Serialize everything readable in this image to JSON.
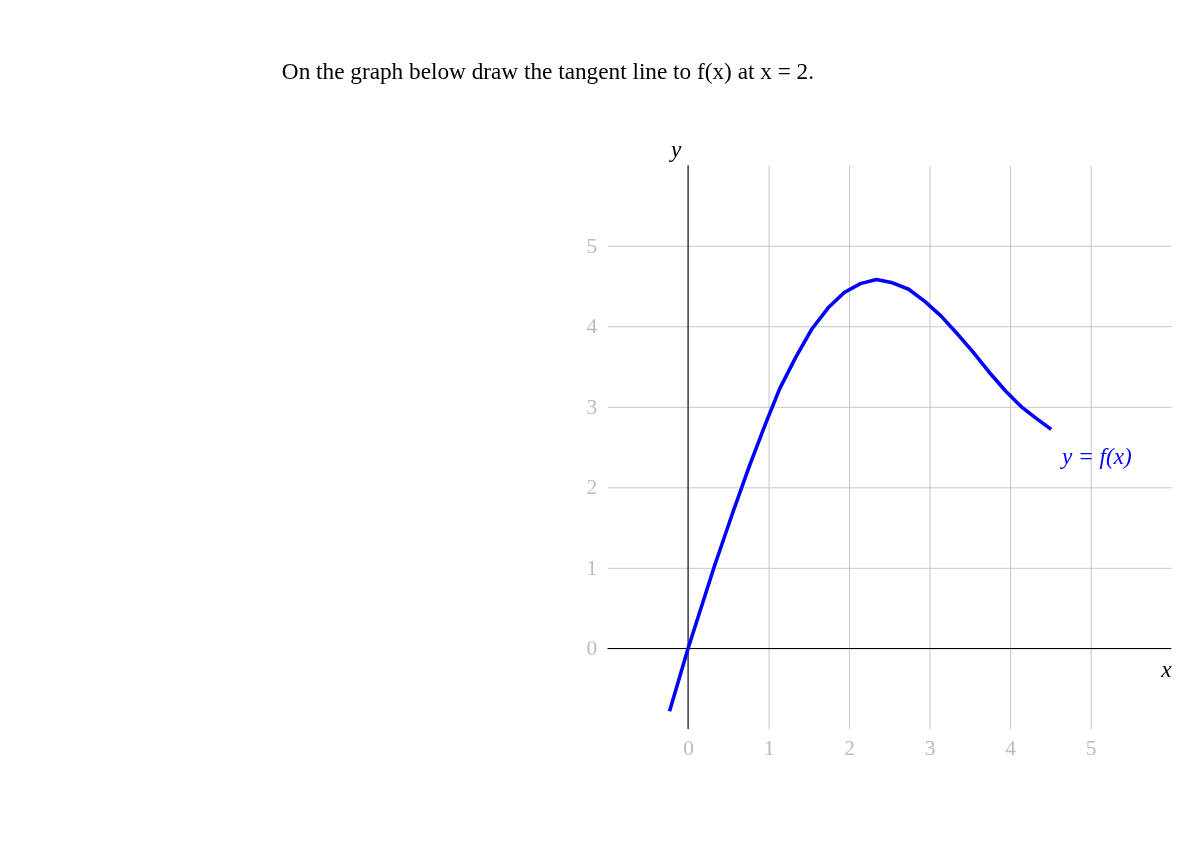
{
  "chart_data": {
    "type": "line",
    "title": "On the graph below draw the tangent line to f(x) at x = 2.",
    "xlabel": "x",
    "ylabel": "y",
    "xlim": [
      -1,
      6
    ],
    "ylim": [
      -1,
      6
    ],
    "xticks": [
      0,
      1,
      2,
      3,
      4,
      5
    ],
    "yticks": [
      0,
      1,
      2,
      3,
      4,
      5
    ],
    "grid": true,
    "marker": "none",
    "line_style": "solid",
    "series": [
      {
        "name": "y = f(x)",
        "color": "#0000ff",
        "x": [
          -0.23,
          0,
          0.33,
          0.56,
          0.76,
          0.97,
          1.14,
          1.34,
          1.54,
          1.74,
          1.94,
          2.14,
          2.34,
          2.54,
          2.74,
          2.94,
          3.14,
          3.34,
          3.54,
          3.74,
          3.94,
          4.14,
          4.32,
          4.51
        ],
        "values": [
          -0.78,
          0,
          1.03,
          1.7,
          2.26,
          2.81,
          3.23,
          3.62,
          3.97,
          4.23,
          4.42,
          4.53,
          4.58,
          4.54,
          4.46,
          4.31,
          4.13,
          3.91,
          3.68,
          3.43,
          3.2,
          3.0,
          2.86,
          2.72
        ]
      }
    ]
  }
}
